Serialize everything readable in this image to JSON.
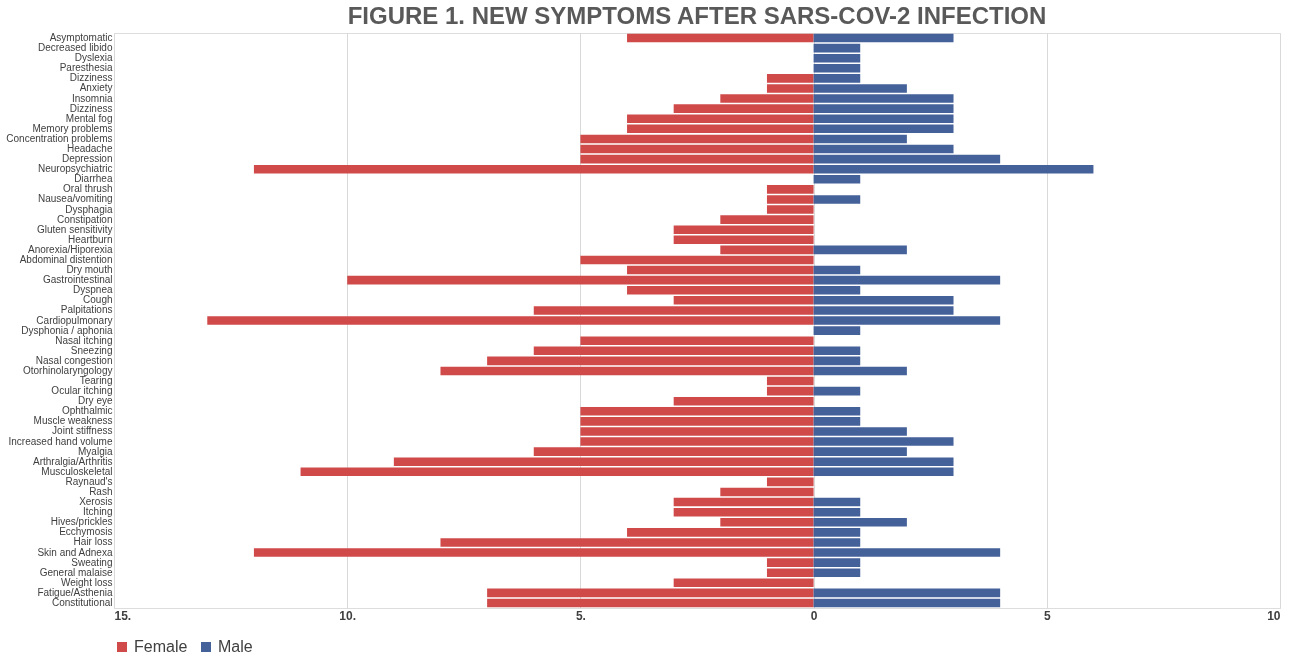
{
  "chart_data": {
    "type": "bar",
    "title": "FIGURE 1. NEW SYMPTOMS AFTER SARS-COV-2 INFECTION",
    "orientation": "horizontal",
    "stacked": true,
    "categories": [
      "Asymptomatic",
      "Decreased libido",
      "Dyslexia",
      "Paresthesia",
      "Dizziness",
      "Anxiety",
      "Insomnia",
      "Dizziness",
      "Mental fog",
      "Memory problems",
      "Concentration problems",
      "Headache",
      "Depression",
      "Neuropsychiatric",
      "Diarrhea",
      "Oral thrush",
      "Nausea/vomiting",
      "Dysphagia",
      "Constipation",
      "Gluten sensitivity",
      "Heartburn",
      "Anorexia/Hiporexia",
      "Abdominal distention",
      "Dry mouth",
      "Gastrointestinal",
      "Dyspnea",
      "Cough",
      "Palpitations",
      "Cardiopulmonary",
      "Dysphonia / aphonia",
      "Nasal itching",
      "Sneezing",
      "Nasal congestion",
      "Otorhinolaryngology",
      "Tearing",
      "Ocular itching",
      "Dry eye",
      "Ophthalmic",
      "Muscle weakness",
      "Joint stiffness",
      "Increased hand volume",
      "Myalgia",
      "Arthralgia/Arthritis",
      "Musculoskeletal",
      "Raynaud's",
      "Rash",
      "Xerosis",
      "Itching",
      "Hives/prickles",
      "Ecchymosis",
      "Hair loss",
      "Skin and Adnexa",
      "Sweating",
      "General malaise",
      "Weight loss",
      "Fatigue/Asthenia",
      "Constitutional"
    ],
    "series": [
      {
        "name": "Female",
        "color": "#d04a4a",
        "values": [
          -4,
          null,
          null,
          null,
          -1,
          -1,
          -2,
          -3,
          -4,
          -4,
          -5,
          -5,
          -5,
          -12,
          null,
          -1,
          -1,
          -1,
          -2,
          -3,
          -3,
          -2,
          -5,
          -4,
          -10,
          -4,
          -3,
          -6,
          -13,
          null,
          -5,
          -6,
          -7,
          -8,
          -1,
          -1,
          -3,
          -5,
          -5,
          -5,
          -5,
          -6,
          -9,
          -11,
          -1,
          -2,
          -3,
          -3,
          -2,
          -4,
          -8,
          -12,
          -1,
          -1,
          -3,
          -7,
          -7
        ]
      },
      {
        "name": "Male",
        "color": "#44619a",
        "values": [
          3,
          1,
          1,
          1,
          1,
          2,
          3,
          3,
          3,
          3,
          2,
          3,
          4,
          6,
          1,
          null,
          1,
          null,
          null,
          null,
          null,
          2,
          null,
          1,
          4,
          1,
          3,
          3,
          4,
          1,
          null,
          1,
          1,
          2,
          null,
          1,
          null,
          1,
          1,
          2,
          3,
          2,
          3,
          3,
          null,
          null,
          1,
          1,
          2,
          1,
          1,
          4,
          1,
          1,
          null,
          4,
          4
        ]
      }
    ],
    "xlim": [
      -15,
      10
    ],
    "xticks": [
      {
        "value": -15,
        "label": "15."
      },
      {
        "value": -10,
        "label": "10."
      },
      {
        "value": -5,
        "label": "5."
      },
      0,
      5,
      10
    ],
    "grid": "x",
    "legend": "bottom"
  }
}
